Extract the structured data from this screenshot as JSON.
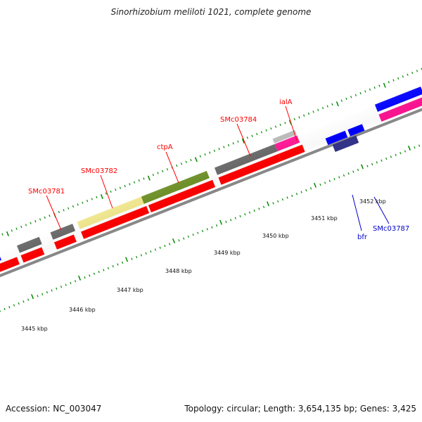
{
  "title": "Sinorhizobium meliloti 1021, complete genome",
  "footer": {
    "accession": "Accession: NC_003047",
    "summary": "Topology: circular; Length: 3,654,135 bp; Genes: 3,425"
  },
  "ruler_labels": [
    "3445 kbp",
    "3446 kbp",
    "3447 kbp",
    "3448 kbp",
    "3449 kbp",
    "3450 kbp",
    "3451 kbp",
    "3452 kbp"
  ],
  "gene_labels": [
    {
      "name": "SMc03781",
      "color": "#ff0000"
    },
    {
      "name": "SMc03782",
      "color": "#ff0000"
    },
    {
      "name": "ctpA",
      "color": "#ff0000"
    },
    {
      "name": "SMc03784",
      "color": "#ff0000"
    },
    {
      "name": "ialA",
      "color": "#ff0000"
    },
    {
      "name": "bfr",
      "color": "#0000cc"
    },
    {
      "name": "SMc03787",
      "color": "#0000cc"
    }
  ],
  "colors": {
    "backbone": "#888888",
    "tick": "#008800",
    "cds_red": "#ff0000",
    "cds_blue": "#0000ff",
    "cds_gray": "#666666",
    "cds_olive": "#6b8e23",
    "cds_khaki": "#f0e68c",
    "cds_pink": "#ff1493",
    "cds_navy": "#333388"
  }
}
